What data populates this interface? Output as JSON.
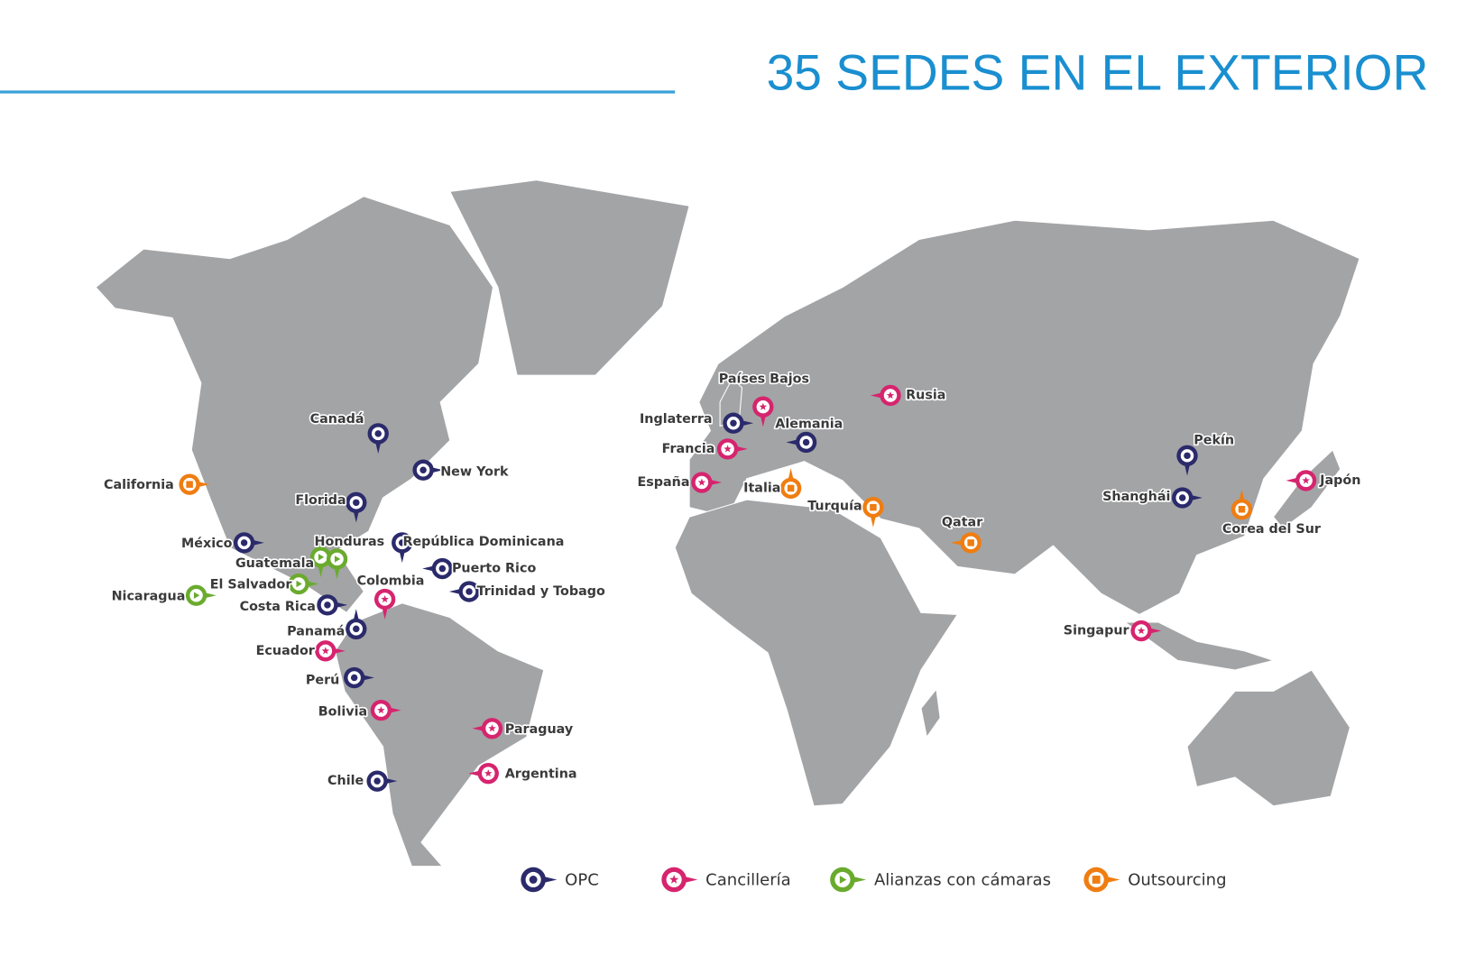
{
  "title": "35 SEDES EN EL EXTERIOR",
  "legend": [
    {
      "type": "opc",
      "label": "OPC",
      "color": "#2b2a6b"
    },
    {
      "type": "canc",
      "label": "Cancillería",
      "color": "#d6246e"
    },
    {
      "type": "ali",
      "label": "Alianzas con cámaras",
      "color": "#6aab2e"
    },
    {
      "type": "out",
      "label": "Outsourcing",
      "color": "#ef7d11"
    }
  ],
  "locations": [
    {
      "label": "Canadá",
      "type": "opc"
    },
    {
      "label": "New York",
      "type": "opc"
    },
    {
      "label": "Florida",
      "type": "opc"
    },
    {
      "label": "California",
      "type": "out"
    },
    {
      "label": "México",
      "type": "opc"
    },
    {
      "label": "Honduras",
      "type": "ali"
    },
    {
      "label": "Guatemala",
      "type": "ali"
    },
    {
      "label": "El Salvador",
      "type": "ali"
    },
    {
      "label": "Nicaragua",
      "type": "ali"
    },
    {
      "label": "Costa Rica",
      "type": "opc"
    },
    {
      "label": "Panamá",
      "type": "opc"
    },
    {
      "label": "República Dominicana",
      "type": "opc"
    },
    {
      "label": "Puerto Rico",
      "type": "opc"
    },
    {
      "label": "Trinidad y Tobago",
      "type": "opc"
    },
    {
      "label": "Colombia",
      "type": "canc"
    },
    {
      "label": "Ecuador",
      "type": "canc"
    },
    {
      "label": "Perú",
      "type": "opc"
    },
    {
      "label": "Bolivia",
      "type": "canc"
    },
    {
      "label": "Paraguay",
      "type": "canc"
    },
    {
      "label": "Argentina",
      "type": "canc"
    },
    {
      "label": "Chile",
      "type": "opc"
    },
    {
      "label": "Inglaterra",
      "type": "opc"
    },
    {
      "label": "Países Bajos",
      "type": "canc"
    },
    {
      "label": "Alemania",
      "type": "opc"
    },
    {
      "label": "Francia",
      "type": "canc"
    },
    {
      "label": "España",
      "type": "canc"
    },
    {
      "label": "Italia",
      "type": "out"
    },
    {
      "label": "Turquía",
      "type": "out"
    },
    {
      "label": "Rusia",
      "type": "canc"
    },
    {
      "label": "Qatar",
      "type": "out"
    },
    {
      "label": "Pekín",
      "type": "opc"
    },
    {
      "label": "Shanghái",
      "type": "opc"
    },
    {
      "label": "Japón",
      "type": "canc"
    },
    {
      "label": "Corea del Sur",
      "type": "out"
    },
    {
      "label": "Singapur",
      "type": "canc"
    }
  ]
}
